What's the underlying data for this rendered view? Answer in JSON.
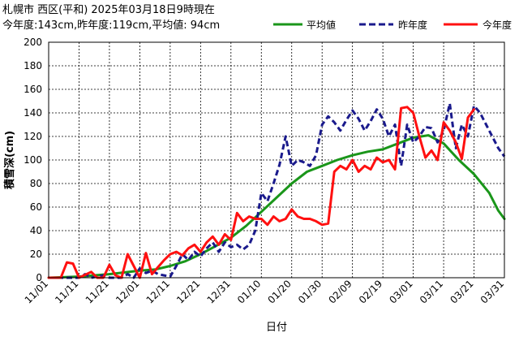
{
  "header": {
    "title": "札幌市 西区(平和) 2025年03月18日9時現在",
    "summary": "今年度:143cm,昨年度:119cm,平均値: 94cm"
  },
  "chart_data": {
    "type": "line",
    "title": "札幌市 西区(平和) 2025年03月18日9時現在",
    "subtitle": "今年度:143cm,昨年度:119cm,平均値: 94cm",
    "xlabel": "日付",
    "ylabel": "積雪深(cm)",
    "ylim": [
      0,
      200
    ],
    "yticks": [
      0,
      20,
      40,
      60,
      80,
      100,
      120,
      140,
      160,
      180,
      200
    ],
    "xlim_days": [
      0,
      150
    ],
    "x_tick_labels": [
      "11/01",
      "11/11",
      "11/21",
      "12/01",
      "12/11",
      "12/21",
      "12/31",
      "01/10",
      "01/20",
      "01/30",
      "02/09",
      "02/19",
      "03/01",
      "03/11",
      "03/21",
      "03/31"
    ],
    "x_tick_days": [
      0,
      10,
      20,
      30,
      40,
      50,
      60,
      70,
      80,
      90,
      100,
      110,
      120,
      130,
      140,
      150
    ],
    "grid": true,
    "legend_position": "top-right",
    "series": [
      {
        "name": "平均値",
        "color": "#1a961a",
        "style": "solid",
        "points": [
          [
            0,
            0
          ],
          [
            10,
            1
          ],
          [
            20,
            3
          ],
          [
            30,
            6
          ],
          [
            35,
            7
          ],
          [
            40,
            10
          ],
          [
            45,
            14
          ],
          [
            50,
            20
          ],
          [
            55,
            27
          ],
          [
            60,
            34
          ],
          [
            65,
            44
          ],
          [
            70,
            56
          ],
          [
            75,
            68
          ],
          [
            80,
            80
          ],
          [
            85,
            90
          ],
          [
            90,
            95
          ],
          [
            95,
            100
          ],
          [
            100,
            104
          ],
          [
            105,
            107
          ],
          [
            110,
            109
          ],
          [
            115,
            114
          ],
          [
            120,
            119
          ],
          [
            125,
            121
          ],
          [
            130,
            114
          ],
          [
            135,
            100
          ],
          [
            140,
            88
          ],
          [
            145,
            72
          ],
          [
            148,
            57
          ],
          [
            150,
            50
          ]
        ]
      },
      {
        "name": "昨年度",
        "color": "#1a1a8c",
        "style": "dashed",
        "points": [
          [
            0,
            0
          ],
          [
            5,
            0
          ],
          [
            10,
            0
          ],
          [
            12,
            3
          ],
          [
            14,
            0
          ],
          [
            18,
            2
          ],
          [
            20,
            0
          ],
          [
            24,
            0
          ],
          [
            26,
            3
          ],
          [
            28,
            0
          ],
          [
            30,
            8
          ],
          [
            32,
            4
          ],
          [
            34,
            6
          ],
          [
            36,
            3
          ],
          [
            38,
            2
          ],
          [
            40,
            1
          ],
          [
            42,
            10
          ],
          [
            44,
            20
          ],
          [
            46,
            15
          ],
          [
            48,
            22
          ],
          [
            50,
            18
          ],
          [
            52,
            25
          ],
          [
            54,
            30
          ],
          [
            56,
            22
          ],
          [
            58,
            30
          ],
          [
            60,
            26
          ],
          [
            62,
            28
          ],
          [
            64,
            24
          ],
          [
            66,
            28
          ],
          [
            68,
            40
          ],
          [
            70,
            72
          ],
          [
            72,
            65
          ],
          [
            74,
            80
          ],
          [
            76,
            96
          ],
          [
            78,
            120
          ],
          [
            80,
            95
          ],
          [
            82,
            100
          ],
          [
            84,
            98
          ],
          [
            86,
            95
          ],
          [
            88,
            104
          ],
          [
            90,
            130
          ],
          [
            92,
            137
          ],
          [
            94,
            132
          ],
          [
            96,
            125
          ],
          [
            98,
            134
          ],
          [
            100,
            142
          ],
          [
            102,
            135
          ],
          [
            104,
            125
          ],
          [
            106,
            133
          ],
          [
            108,
            143
          ],
          [
            110,
            135
          ],
          [
            112,
            120
          ],
          [
            114,
            130
          ],
          [
            116,
            95
          ],
          [
            118,
            130
          ],
          [
            120,
            115
          ],
          [
            122,
            120
          ],
          [
            124,
            128
          ],
          [
            126,
            127
          ],
          [
            128,
            115
          ],
          [
            130,
            125
          ],
          [
            132,
            148
          ],
          [
            134,
            110
          ],
          [
            136,
            130
          ],
          [
            138,
            120
          ],
          [
            140,
            146
          ],
          [
            142,
            140
          ],
          [
            144,
            130
          ],
          [
            146,
            120
          ],
          [
            148,
            110
          ],
          [
            150,
            103
          ]
        ]
      },
      {
        "name": "今年度",
        "color": "#ff1010",
        "style": "solid",
        "points": [
          [
            0,
            0
          ],
          [
            4,
            0
          ],
          [
            6,
            13
          ],
          [
            8,
            12
          ],
          [
            10,
            0
          ],
          [
            14,
            5
          ],
          [
            16,
            0
          ],
          [
            18,
            0
          ],
          [
            20,
            11
          ],
          [
            22,
            2
          ],
          [
            24,
            0
          ],
          [
            26,
            20
          ],
          [
            28,
            10
          ],
          [
            30,
            0
          ],
          [
            32,
            21
          ],
          [
            34,
            3
          ],
          [
            36,
            9
          ],
          [
            38,
            15
          ],
          [
            40,
            20
          ],
          [
            42,
            22
          ],
          [
            44,
            19
          ],
          [
            46,
            25
          ],
          [
            48,
            28
          ],
          [
            50,
            22
          ],
          [
            52,
            30
          ],
          [
            54,
            35
          ],
          [
            56,
            28
          ],
          [
            58,
            37
          ],
          [
            60,
            32
          ],
          [
            62,
            55
          ],
          [
            64,
            48
          ],
          [
            66,
            52
          ],
          [
            68,
            50
          ],
          [
            70,
            50
          ],
          [
            72,
            45
          ],
          [
            74,
            52
          ],
          [
            76,
            48
          ],
          [
            78,
            50
          ],
          [
            80,
            58
          ],
          [
            82,
            52
          ],
          [
            84,
            50
          ],
          [
            86,
            50
          ],
          [
            88,
            48
          ],
          [
            90,
            45
          ],
          [
            92,
            46
          ],
          [
            94,
            90
          ],
          [
            96,
            95
          ],
          [
            98,
            92
          ],
          [
            100,
            100
          ],
          [
            102,
            90
          ],
          [
            104,
            95
          ],
          [
            106,
            92
          ],
          [
            108,
            102
          ],
          [
            110,
            98
          ],
          [
            112,
            100
          ],
          [
            114,
            92
          ],
          [
            116,
            144
          ],
          [
            118,
            145
          ],
          [
            120,
            140
          ],
          [
            122,
            120
          ],
          [
            124,
            102
          ],
          [
            126,
            108
          ],
          [
            128,
            100
          ],
          [
            130,
            132
          ],
          [
            132,
            125
          ],
          [
            134,
            115
          ],
          [
            136,
            101
          ],
          [
            138,
            136
          ],
          [
            140,
            143
          ]
        ]
      }
    ]
  }
}
